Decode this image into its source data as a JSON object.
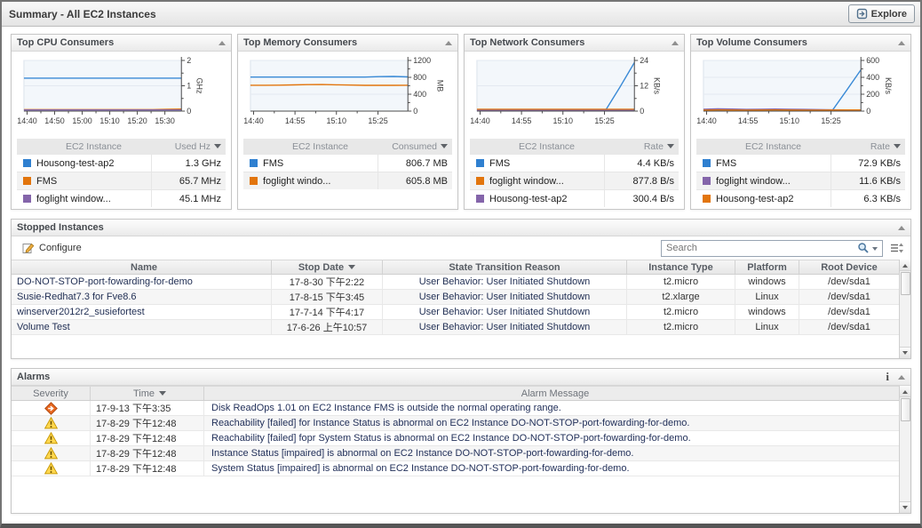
{
  "header": {
    "title": "Summary - All EC2 Instances",
    "explore_label": "Explore"
  },
  "icons": {
    "info_glyph": "i"
  },
  "top_panels": [
    {
      "title": "Top CPU Consumers",
      "instance_header": "EC2 Instance",
      "value_header": "Used Hz",
      "rows": [
        {
          "color": "#2f80d0",
          "name": "Housong-test-ap2",
          "value": "1.3 GHz"
        },
        {
          "color": "#e2750d",
          "name": "FMS",
          "value": "65.7 MHz"
        },
        {
          "color": "#8465aa",
          "name": "foglight window...",
          "value": "45.1 MHz"
        }
      ]
    },
    {
      "title": "Top Memory Consumers",
      "instance_header": "EC2 Instance",
      "value_header": "Consumed",
      "rows": [
        {
          "color": "#2f80d0",
          "name": "FMS",
          "value": "806.7 MB"
        },
        {
          "color": "#e2750d",
          "name": "foglight windo...",
          "value": "605.8 MB"
        }
      ]
    },
    {
      "title": "Top Network Consumers",
      "instance_header": "EC2 Instance",
      "value_header": "Rate",
      "rows": [
        {
          "color": "#2f80d0",
          "name": "FMS",
          "value": "4.4 KB/s"
        },
        {
          "color": "#e2750d",
          "name": "foglight window...",
          "value": "877.8 B/s"
        },
        {
          "color": "#8465aa",
          "name": "Housong-test-ap2",
          "value": "300.4 B/s"
        }
      ]
    },
    {
      "title": "Top Volume Consumers",
      "instance_header": "EC2 Instance",
      "value_header": "Rate",
      "rows": [
        {
          "color": "#2f80d0",
          "name": "FMS",
          "value": "72.9 KB/s"
        },
        {
          "color": "#8465aa",
          "name": "foglight window...",
          "value": "11.6 KB/s"
        },
        {
          "color": "#e2750d",
          "name": "Housong-test-ap2",
          "value": "6.3 KB/s"
        }
      ]
    }
  ],
  "chart_data": [
    {
      "type": "line",
      "title": "Top CPU Consumers",
      "unit": "GHz",
      "ylim": [
        0,
        2
      ],
      "yticks": [
        0,
        1,
        2
      ],
      "xticks": [
        {
          "label": "14:40",
          "pos": 0.02
        },
        {
          "label": "14:50",
          "pos": 0.195
        },
        {
          "label": "15:00",
          "pos": 0.37
        },
        {
          "label": "15:10",
          "pos": 0.545
        },
        {
          "label": "15:20",
          "pos": 0.72
        },
        {
          "label": "15:30",
          "pos": 0.895
        }
      ],
      "series": [
        {
          "name": "Housong-test-ap2",
          "color": "#3a8ad6",
          "values": [
            1.3,
            1.3,
            1.3,
            1.3,
            1.3,
            1.3,
            1.3,
            1.3,
            1.3,
            1.3,
            1.3,
            1.3
          ]
        },
        {
          "name": "FMS",
          "color": "#e2750d",
          "values": [
            0.06,
            0.06,
            0.06,
            0.06,
            0.06,
            0.06,
            0.06,
            0.06,
            0.06,
            0.06,
            0.07,
            0.08
          ]
        },
        {
          "name": "foglight window...",
          "color": "#8465aa",
          "values": [
            0.045,
            0.045,
            0.045,
            0.045,
            0.045,
            0.045,
            0.045,
            0.045,
            0.045,
            0.045,
            0.045,
            0.045
          ]
        }
      ]
    },
    {
      "type": "line",
      "title": "Top Memory Consumers",
      "unit": "MB",
      "ylim": [
        0,
        1200
      ],
      "yticks": [
        0,
        400,
        800,
        1200
      ],
      "xticks": [
        {
          "label": "14:40",
          "pos": 0.02
        },
        {
          "label": "14:55",
          "pos": 0.283
        },
        {
          "label": "15:10",
          "pos": 0.546
        },
        {
          "label": "15:25",
          "pos": 0.81
        }
      ],
      "series": [
        {
          "name": "FMS",
          "color": "#3a8ad6",
          "values": [
            807,
            807,
            807,
            806,
            806,
            806,
            806,
            806,
            807,
            816,
            822,
            810
          ]
        },
        {
          "name": "foglight windo...",
          "color": "#e2750d",
          "values": [
            612,
            612,
            614,
            620,
            627,
            630,
            624,
            616,
            611,
            610,
            610,
            612
          ]
        }
      ]
    },
    {
      "type": "line",
      "title": "Top Network Consumers",
      "unit": "KB/s",
      "ylim": [
        0,
        24
      ],
      "yticks": [
        0,
        12,
        24
      ],
      "xticks": [
        {
          "label": "14:40",
          "pos": 0.02
        },
        {
          "label": "14:55",
          "pos": 0.283
        },
        {
          "label": "15:10",
          "pos": 0.546
        },
        {
          "label": "15:25",
          "pos": 0.81
        }
      ],
      "series": [
        {
          "name": "FMS",
          "color": "#3a8ad6",
          "values": [
            0.5,
            0.5,
            0.5,
            0.5,
            0.5,
            0.5,
            0.5,
            0.5,
            0.5,
            0.5,
            11.5,
            23
          ]
        },
        {
          "name": "foglight window...",
          "color": "#e2750d",
          "values": [
            0.9,
            0.9,
            0.9,
            0.9,
            0.9,
            0.9,
            0.9,
            0.9,
            0.9,
            0.9,
            0.9,
            0.9
          ]
        },
        {
          "name": "Housong-test-ap2",
          "color": "#8465aa",
          "values": [
            0.35,
            0.35,
            0.35,
            0.35,
            0.35,
            0.35,
            0.35,
            0.35,
            0.35,
            0.35,
            0.35,
            0.35
          ]
        }
      ]
    },
    {
      "type": "line",
      "title": "Top Volume Consumers",
      "unit": "KB/s",
      "ylim": [
        0,
        600
      ],
      "yticks": [
        0,
        200,
        400,
        600
      ],
      "xticks": [
        {
          "label": "14:40",
          "pos": 0.02
        },
        {
          "label": "14:55",
          "pos": 0.283
        },
        {
          "label": "15:10",
          "pos": 0.546
        },
        {
          "label": "15:25",
          "pos": 0.81
        }
      ],
      "series": [
        {
          "name": "FMS",
          "color": "#3a8ad6",
          "values": [
            6,
            6,
            6,
            6,
            6,
            6,
            6,
            6,
            6,
            6,
            245,
            490
          ]
        },
        {
          "name": "foglight window...",
          "color": "#8465aa",
          "values": [
            22,
            26,
            24,
            20,
            22,
            24,
            22,
            20,
            18,
            15,
            14,
            14
          ]
        },
        {
          "name": "Housong-test-ap2",
          "color": "#e2750d",
          "values": [
            12,
            14,
            13,
            12,
            13,
            14,
            13,
            12,
            12,
            13,
            14,
            14
          ]
        }
      ]
    }
  ],
  "stopped": {
    "title": "Stopped Instances",
    "configure_label": "Configure",
    "search_placeholder": "Search",
    "columns": [
      "Name",
      "Stop Date",
      "State Transition Reason",
      "Instance Type",
      "Platform",
      "Root Device"
    ],
    "rows": [
      {
        "name": "DO-NOT-STOP-port-fowarding-for-demo",
        "stop_date": "17-8-30 下午2:22",
        "reason": "User Behavior: User Initiated Shutdown",
        "type": "t2.micro",
        "platform": "windows",
        "root": "/dev/sda1"
      },
      {
        "name": "Susie-Redhat7.3 for Fve8.6",
        "stop_date": "17-8-15 下午3:45",
        "reason": "User Behavior: User Initiated Shutdown",
        "type": "t2.xlarge",
        "platform": "Linux",
        "root": "/dev/sda1"
      },
      {
        "name": "winserver2012r2_susiefortest",
        "stop_date": "17-7-14 下午4:17",
        "reason": "User Behavior: User Initiated Shutdown",
        "type": "t2.micro",
        "platform": "windows",
        "root": "/dev/sda1"
      },
      {
        "name": "Volume Test",
        "stop_date": "17-6-26 上午10:57",
        "reason": "User Behavior: User Initiated Shutdown",
        "type": "t2.micro",
        "platform": "Linux",
        "root": "/dev/sda1"
      }
    ]
  },
  "alarms": {
    "title": "Alarms",
    "columns": [
      "Severity",
      "Time",
      "Alarm Message"
    ],
    "rows": [
      {
        "severity": "critical",
        "time": "17-9-13 下午3:35",
        "message": "Disk ReadOps 1.01 on EC2 Instance FMS is outside the normal operating range."
      },
      {
        "severity": "warning",
        "time": "17-8-29 下午12:48",
        "message": "Reachability [failed] for Instance Status is abnormal on EC2 Instance DO-NOT-STOP-port-fowarding-for-demo."
      },
      {
        "severity": "warning",
        "time": "17-8-29 下午12:48",
        "message": "Reachability [failed] fopr System Status is abnormal on EC2 Instance DO-NOT-STOP-port-fowarding-for-demo."
      },
      {
        "severity": "warning",
        "time": "17-8-29 下午12:48",
        "message": "Instance Status [impaired] is abnormal on EC2 Instance DO-NOT-STOP-port-fowarding-for-demo."
      },
      {
        "severity": "warning",
        "time": "17-8-29 下午12:48",
        "message": "System Status [impaired] is abnormal on EC2 Instance DO-NOT-STOP-port-fowarding-for-demo."
      }
    ]
  }
}
